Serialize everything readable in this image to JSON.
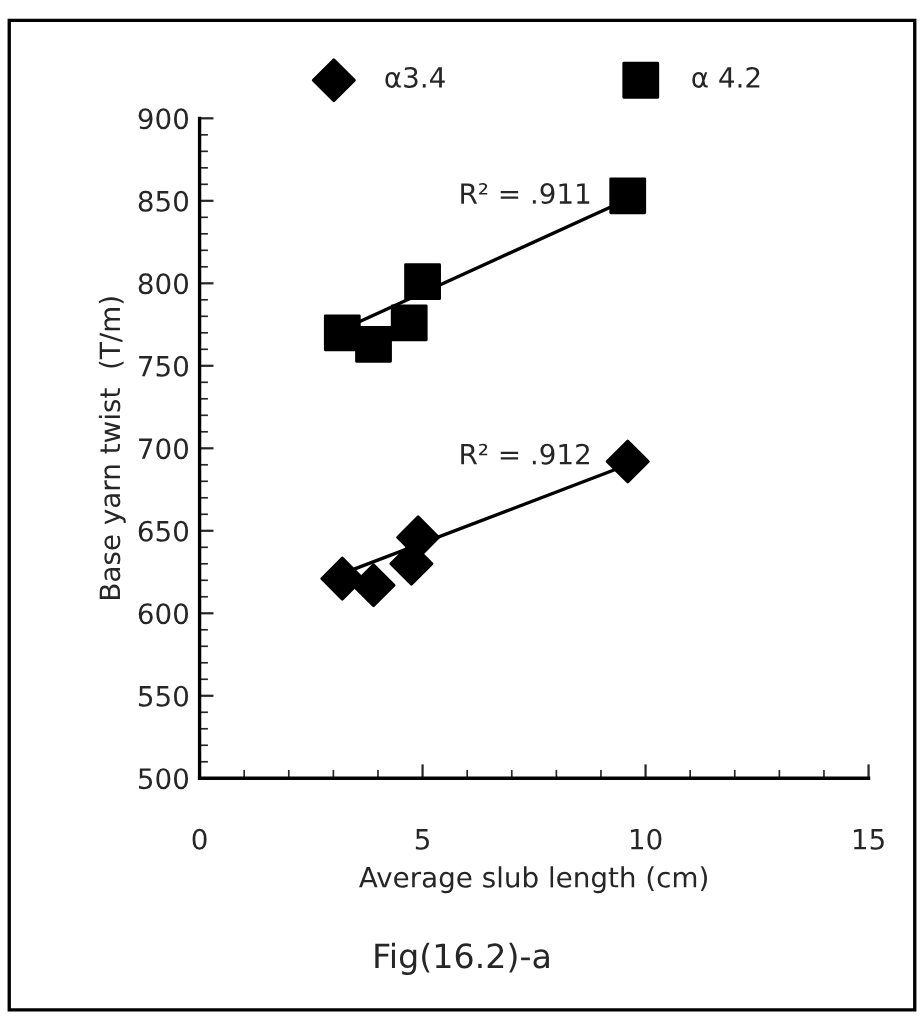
{
  "chart_data": {
    "type": "scatter",
    "xlabel": "Average slub length (cm)",
    "ylabel": "Base yarn twist  (T/m)",
    "xlim": [
      0,
      15
    ],
    "xticks": [
      0,
      5,
      10,
      15
    ],
    "ylim": [
      500,
      900
    ],
    "yticks": [
      500,
      550,
      600,
      650,
      700,
      750,
      800,
      850,
      900
    ],
    "grid": false,
    "legend": "top",
    "series": [
      {
        "name": "α3.4",
        "color": "#000000",
        "marker": "diamond",
        "x": [
          3.2,
          3.9,
          4.75,
          4.9,
          9.6
        ],
        "values": [
          621,
          617,
          630,
          646,
          692
        ]
      },
      {
        "name": "α 4.2",
        "color": "#000000",
        "marker": "square",
        "x": [
          3.2,
          3.9,
          4.6,
          4.7,
          5.0,
          9.6
        ],
        "values": [
          770,
          763,
          null,
          776,
          801,
          853
        ]
      },
      {
        "type": "line",
        "color": "#000000",
        "x": [
          3.2,
          9.6
        ],
        "values": [
          624,
          690
        ]
      },
      {
        "type": "line",
        "color": "#000000",
        "x": [
          3.2,
          9.6
        ],
        "values": [
          772,
          851
        ]
      }
    ],
    "annotations": [
      {
        "text": "R² = .911",
        "x": 7.3,
        "y": 826
      },
      {
        "text": "R² = .912",
        "x": 7.3,
        "y": 668
      },
      "Fig(16.2)-a"
    ]
  }
}
